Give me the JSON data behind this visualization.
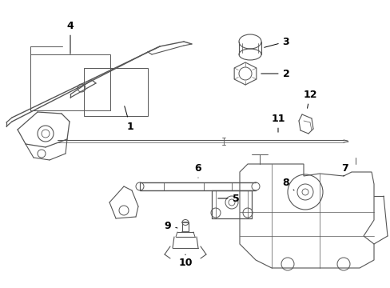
{
  "background_color": "#ffffff",
  "line_color": "#555555",
  "label_color": "#000000",
  "label_fontsize": 9,
  "fig_width": 4.89,
  "fig_height": 3.6,
  "dpi": 100
}
